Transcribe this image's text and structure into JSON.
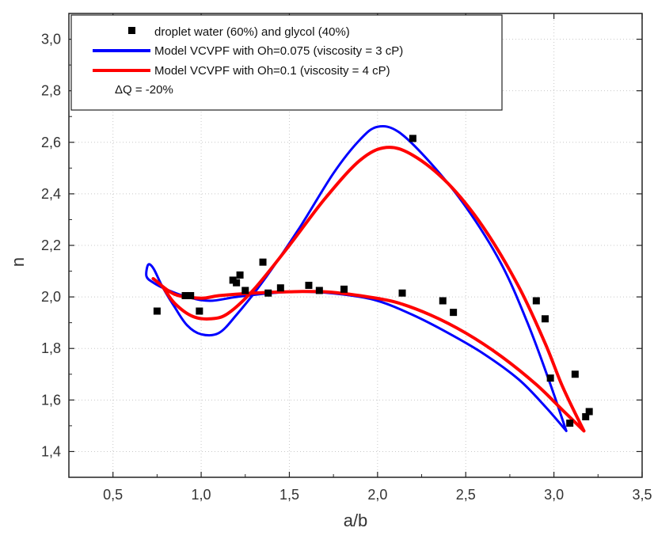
{
  "chart_data": {
    "type": "scatter",
    "xlabel": "a/b",
    "ylabel": "n",
    "xlim": [
      0.25,
      3.5
    ],
    "ylim": [
      1.3,
      3.1
    ],
    "xticks": [
      "0,5",
      "1,0",
      "1,5",
      "2,0",
      "2,5",
      "3,0",
      "3,5"
    ],
    "xtick_values": [
      0.5,
      1.0,
      1.5,
      2.0,
      2.5,
      3.0,
      3.5
    ],
    "yticks": [
      "1,4",
      "1,6",
      "1,8",
      "2,0",
      "2,2",
      "2,4",
      "2,6",
      "2,8",
      "3,0"
    ],
    "ytick_values": [
      1.4,
      1.6,
      1.8,
      2.0,
      2.2,
      2.4,
      2.6,
      2.8,
      3.0
    ],
    "grid": true,
    "legend_position": "top-left",
    "legend": {
      "entries": [
        {
          "label": "droplet water (60%) and glycol (40%)",
          "marker": "square",
          "color": "#000000"
        },
        {
          "label": "Model VCVPF with Oh=0.075 (viscosity = 3 cP)",
          "marker": "line",
          "color": "#0000ff"
        },
        {
          "label": "Model VCVPF with Oh=0.1 (viscosity = 4 cP)",
          "marker": "line",
          "color": "#ff0000"
        }
      ],
      "note": "ΔQ = -20%"
    },
    "series": [
      {
        "name": "droplet water (60%) and glycol (40%)",
        "kind": "scatter",
        "color": "#000000",
        "points": [
          [
            0.75,
            1.945
          ],
          [
            0.91,
            2.005
          ],
          [
            0.94,
            2.005
          ],
          [
            0.99,
            1.945
          ],
          [
            1.18,
            2.065
          ],
          [
            1.2,
            2.055
          ],
          [
            1.22,
            2.085
          ],
          [
            1.25,
            2.025
          ],
          [
            1.35,
            2.135
          ],
          [
            1.38,
            2.015
          ],
          [
            1.45,
            2.035
          ],
          [
            1.61,
            2.045
          ],
          [
            1.67,
            2.025
          ],
          [
            1.81,
            2.03
          ],
          [
            2.14,
            2.015
          ],
          [
            2.2,
            2.615
          ],
          [
            2.37,
            1.985
          ],
          [
            2.43,
            1.94
          ],
          [
            2.9,
            1.985
          ],
          [
            2.95,
            1.915
          ],
          [
            2.98,
            1.685
          ],
          [
            3.09,
            1.51
          ],
          [
            3.12,
            1.7
          ],
          [
            3.18,
            1.535
          ],
          [
            3.2,
            1.555
          ]
        ]
      },
      {
        "name": "Model VCVPF with Oh=0.075 (viscosity = 3 cP)",
        "kind": "line",
        "color": "#0000ff",
        "points": [
          [
            3.07,
            1.48
          ],
          [
            2.95,
            1.575
          ],
          [
            2.8,
            1.68
          ],
          [
            2.6,
            1.78
          ],
          [
            2.4,
            1.86
          ],
          [
            2.2,
            1.93
          ],
          [
            2.0,
            1.985
          ],
          [
            1.8,
            2.01
          ],
          [
            1.6,
            2.02
          ],
          [
            1.4,
            2.015
          ],
          [
            1.2,
            2.0
          ],
          [
            1.05,
            1.985
          ],
          [
            0.92,
            2.0
          ],
          [
            0.8,
            2.03
          ],
          [
            0.73,
            2.055
          ],
          [
            0.69,
            2.08
          ],
          [
            0.7,
            2.125
          ],
          [
            0.73,
            2.11
          ],
          [
            0.78,
            2.04
          ],
          [
            0.85,
            1.96
          ],
          [
            0.92,
            1.89
          ],
          [
            1.0,
            1.855
          ],
          [
            1.1,
            1.86
          ],
          [
            1.2,
            1.93
          ],
          [
            1.35,
            2.06
          ],
          [
            1.55,
            2.26
          ],
          [
            1.75,
            2.48
          ],
          [
            1.9,
            2.61
          ],
          [
            2.0,
            2.66
          ],
          [
            2.12,
            2.64
          ],
          [
            2.3,
            2.52
          ],
          [
            2.5,
            2.35
          ],
          [
            2.7,
            2.13
          ],
          [
            2.85,
            1.9
          ],
          [
            2.97,
            1.68
          ],
          [
            3.07,
            1.48
          ]
        ]
      },
      {
        "name": "Model VCVPF with Oh=0.1 (viscosity = 4 cP)",
        "kind": "line",
        "color": "#ff0000",
        "points": [
          [
            3.17,
            1.48
          ],
          [
            3.05,
            1.56
          ],
          [
            2.9,
            1.66
          ],
          [
            2.7,
            1.77
          ],
          [
            2.5,
            1.86
          ],
          [
            2.3,
            1.93
          ],
          [
            2.1,
            1.98
          ],
          [
            1.9,
            2.005
          ],
          [
            1.7,
            2.02
          ],
          [
            1.5,
            2.02
          ],
          [
            1.3,
            2.015
          ],
          [
            1.1,
            2.005
          ],
          [
            1.0,
            1.995
          ],
          [
            0.85,
            2.01
          ],
          [
            0.73,
            2.07
          ],
          [
            0.78,
            2.04
          ],
          [
            0.85,
            1.975
          ],
          [
            0.95,
            1.925
          ],
          [
            1.05,
            1.915
          ],
          [
            1.15,
            1.935
          ],
          [
            1.3,
            2.03
          ],
          [
            1.5,
            2.2
          ],
          [
            1.7,
            2.38
          ],
          [
            1.9,
            2.53
          ],
          [
            2.05,
            2.58
          ],
          [
            2.2,
            2.55
          ],
          [
            2.4,
            2.44
          ],
          [
            2.6,
            2.27
          ],
          [
            2.8,
            2.04
          ],
          [
            2.95,
            1.82
          ],
          [
            3.05,
            1.65
          ],
          [
            3.17,
            1.48
          ]
        ]
      }
    ]
  }
}
